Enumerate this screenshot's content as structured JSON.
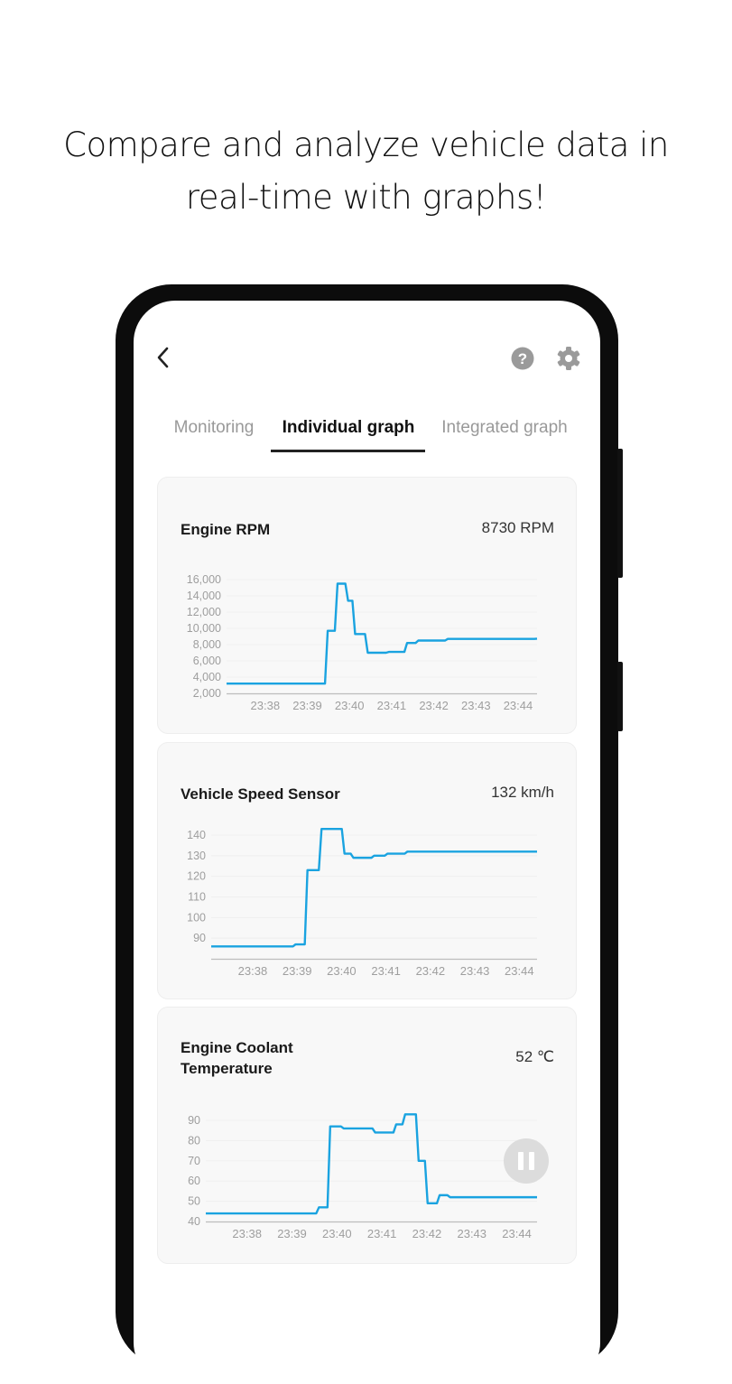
{
  "headline": {
    "line1": "Compare and analyze vehicle data in",
    "line2": "real-time with graphs!"
  },
  "header": {
    "back_icon": "chevron-left-icon",
    "help_icon": "question-circle-icon",
    "settings_icon": "gear-icon"
  },
  "tabs": [
    {
      "label": "Monitoring",
      "active": false
    },
    {
      "label": "Individual graph",
      "active": true
    },
    {
      "label": "Integrated graph",
      "active": false
    }
  ],
  "colors": {
    "line": "#1aa3e0",
    "axis_text": "#9e9e9e",
    "card_bg": "#f8f8f8",
    "active_tab": "#222222"
  },
  "pause_button": {
    "icon": "pause-icon"
  },
  "chart_data": [
    {
      "type": "line",
      "title": "Engine RPM",
      "value_label": "8730 RPM",
      "x_ticks": [
        "23:38",
        "23:39",
        "23:40",
        "23:41",
        "23:42",
        "23:43",
        "23:44"
      ],
      "y_ticks": [
        "2,000",
        "4,000",
        "6,000",
        "8,000",
        "10,000",
        "12,000",
        "14,000",
        "16,000"
      ],
      "ylim": [
        2000,
        16000
      ],
      "xlim": [
        "23:37:05",
        "23:44:27"
      ],
      "grid": true,
      "step": true,
      "x": [
        "23:37:05",
        "23:39:29",
        "23:39:43",
        "23:39:58",
        "23:40:08",
        "23:40:26",
        "23:40:56",
        "23:41:22",
        "23:41:38",
        "23:42:20",
        "23:44:27"
      ],
      "y": [
        3200,
        9700,
        15500,
        13400,
        9300,
        7000,
        7100,
        8200,
        8500,
        8700,
        8730
      ]
    },
    {
      "type": "line",
      "title": "Vehicle Speed Sensor",
      "value_label": "132 km/h",
      "x_ticks": [
        "23:38",
        "23:39",
        "23:40",
        "23:41",
        "23:42",
        "23:43",
        "23:44"
      ],
      "y_ticks": [
        "90",
        "100",
        "110",
        "120",
        "130",
        "140"
      ],
      "ylim": [
        80,
        140
      ],
      "xlim": [
        "23:37:04",
        "23:44:24"
      ],
      "grid": true,
      "step": true,
      "x": [
        "23:37:04",
        "23:38:58",
        "23:39:14",
        "23:39:33",
        "23:40:04",
        "23:40:16",
        "23:40:44",
        "23:41:02",
        "23:41:29",
        "23:44:24"
      ],
      "y": [
        86,
        87,
        123,
        143,
        131,
        129,
        130,
        131,
        132,
        132
      ]
    },
    {
      "type": "line",
      "title": "Engine Coolant Temperature",
      "value_label": "52 ℃",
      "x_ticks": [
        "23:38",
        "23:39",
        "23:40",
        "23:41",
        "23:42",
        "23:43",
        "23:44"
      ],
      "y_ticks": [
        "40",
        "50",
        "60",
        "70",
        "80",
        "90"
      ],
      "ylim": [
        40,
        90
      ],
      "xlim": [
        "23:37:05",
        "23:44:27"
      ],
      "grid": true,
      "step": true,
      "x": [
        "23:37:05",
        "23:39:36",
        "23:39:51",
        "23:40:09",
        "23:40:51",
        "23:41:19",
        "23:41:31",
        "23:41:49",
        "23:42:01",
        "23:42:17",
        "23:42:31",
        "23:44:27"
      ],
      "y": [
        44,
        47,
        87,
        86,
        84,
        88,
        93,
        70,
        49,
        53,
        52,
        52
      ]
    }
  ]
}
